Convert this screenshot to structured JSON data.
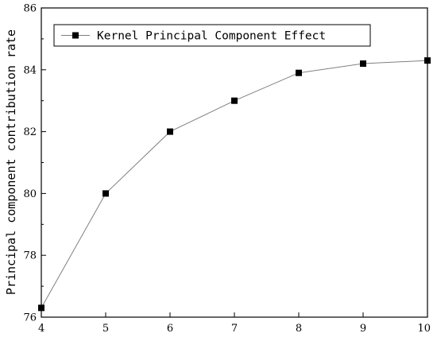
{
  "chart_data": {
    "type": "line",
    "title": "",
    "xlabel": "",
    "ylabel": "Principal component contribution rate",
    "x": [
      4,
      5,
      6,
      7,
      8,
      9,
      10
    ],
    "series": [
      {
        "name": "Kernel Principal Component Effect",
        "values": [
          76.3,
          80.0,
          82.0,
          83.0,
          83.9,
          84.2,
          84.3
        ]
      }
    ],
    "xlim": [
      4,
      10
    ],
    "ylim": [
      76,
      86
    ],
    "xticks": [
      "4",
      "5",
      "6",
      "7",
      "8",
      "9",
      "10"
    ],
    "yticks": [
      "76",
      "78",
      "80",
      "82",
      "84",
      "86"
    ],
    "grid": false,
    "legend_position": "top-left",
    "marker": "square",
    "line_color": "#808080",
    "marker_color": "#000000"
  }
}
